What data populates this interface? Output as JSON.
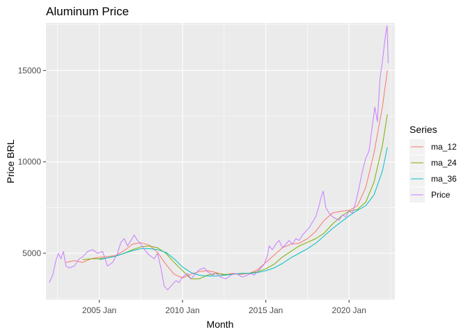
{
  "chart_data": {
    "type": "line",
    "title": "Aluminum Price",
    "xlabel": "Month",
    "ylabel": "Price BRL",
    "x_range": [
      2001.8,
      2022.75
    ],
    "ylim": [
      2450,
      17600
    ],
    "x_ticks": [
      {
        "value": 2005.0,
        "label": "2005 Jan"
      },
      {
        "value": 2010.0,
        "label": "2010 Jan"
      },
      {
        "value": 2015.0,
        "label": "2015 Jan"
      },
      {
        "value": 2020.0,
        "label": "2020 Jan"
      }
    ],
    "y_ticks": [
      {
        "value": 5000,
        "label": "5000"
      },
      {
        "value": 10000,
        "label": "10000"
      },
      {
        "value": 15000,
        "label": "15000"
      }
    ],
    "grid": true,
    "background": "#ebebeb",
    "legend": {
      "title": "Series",
      "position": "right"
    },
    "series": [
      {
        "name": "ma_12",
        "color": "#f8766d",
        "points": [
          [
            2003.0,
            4500
          ],
          [
            2003.5,
            4600
          ],
          [
            2004.0,
            4500
          ],
          [
            2004.5,
            4700
          ],
          [
            2005.0,
            4780
          ],
          [
            2005.5,
            4820
          ],
          [
            2006.0,
            4880
          ],
          [
            2006.5,
            5150
          ],
          [
            2007.0,
            5500
          ],
          [
            2007.5,
            5580
          ],
          [
            2008.0,
            5450
          ],
          [
            2008.5,
            5050
          ],
          [
            2009.0,
            4400
          ],
          [
            2009.5,
            3850
          ],
          [
            2010.0,
            3650
          ],
          [
            2010.5,
            3850
          ],
          [
            2011.0,
            4000
          ],
          [
            2011.5,
            4050
          ],
          [
            2012.0,
            3950
          ],
          [
            2012.5,
            3800
          ],
          [
            2013.0,
            3900
          ],
          [
            2013.5,
            3850
          ],
          [
            2014.0,
            3900
          ],
          [
            2014.5,
            4100
          ],
          [
            2015.0,
            4500
          ],
          [
            2015.5,
            4900
          ],
          [
            2016.0,
            5300
          ],
          [
            2016.5,
            5500
          ],
          [
            2017.0,
            5550
          ],
          [
            2017.5,
            5800
          ],
          [
            2018.0,
            6200
          ],
          [
            2018.5,
            6800
          ],
          [
            2019.0,
            7200
          ],
          [
            2019.5,
            7300
          ],
          [
            2020.0,
            7350
          ],
          [
            2020.5,
            7600
          ],
          [
            2021.0,
            8600
          ],
          [
            2021.5,
            10500
          ],
          [
            2022.0,
            13000
          ],
          [
            2022.3,
            15000
          ]
        ]
      },
      {
        "name": "ma_24",
        "color": "#7cae00",
        "points": [
          [
            2004.0,
            4650
          ],
          [
            2004.5,
            4700
          ],
          [
            2005.0,
            4700
          ],
          [
            2005.5,
            4750
          ],
          [
            2006.0,
            4850
          ],
          [
            2006.5,
            5000
          ],
          [
            2007.0,
            5200
          ],
          [
            2007.5,
            5350
          ],
          [
            2008.0,
            5400
          ],
          [
            2008.5,
            5300
          ],
          [
            2009.0,
            5000
          ],
          [
            2009.5,
            4500
          ],
          [
            2010.0,
            4050
          ],
          [
            2010.5,
            3600
          ],
          [
            2011.0,
            3600
          ],
          [
            2011.5,
            3800
          ],
          [
            2012.0,
            3900
          ],
          [
            2012.5,
            3850
          ],
          [
            2013.0,
            3850
          ],
          [
            2013.5,
            3900
          ],
          [
            2014.0,
            3900
          ],
          [
            2014.5,
            4000
          ],
          [
            2015.0,
            4150
          ],
          [
            2015.5,
            4400
          ],
          [
            2016.0,
            4800
          ],
          [
            2016.5,
            5100
          ],
          [
            2017.0,
            5400
          ],
          [
            2017.5,
            5600
          ],
          [
            2018.0,
            5800
          ],
          [
            2018.5,
            6100
          ],
          [
            2019.0,
            6600
          ],
          [
            2019.5,
            7000
          ],
          [
            2020.0,
            7300
          ],
          [
            2020.5,
            7400
          ],
          [
            2021.0,
            7800
          ],
          [
            2021.5,
            8900
          ],
          [
            2022.0,
            10900
          ],
          [
            2022.3,
            12600
          ]
        ]
      },
      {
        "name": "ma_36",
        "color": "#00bfc4",
        "points": [
          [
            2005.0,
            4650
          ],
          [
            2005.5,
            4750
          ],
          [
            2006.0,
            4850
          ],
          [
            2006.5,
            5000
          ],
          [
            2007.0,
            5150
          ],
          [
            2007.5,
            5250
          ],
          [
            2008.0,
            5250
          ],
          [
            2008.5,
            5200
          ],
          [
            2009.0,
            5050
          ],
          [
            2009.5,
            4700
          ],
          [
            2010.0,
            4250
          ],
          [
            2010.5,
            3950
          ],
          [
            2011.0,
            3800
          ],
          [
            2011.5,
            3750
          ],
          [
            2012.0,
            3750
          ],
          [
            2012.5,
            3800
          ],
          [
            2013.0,
            3850
          ],
          [
            2013.5,
            3900
          ],
          [
            2014.0,
            3900
          ],
          [
            2014.5,
            3950
          ],
          [
            2015.0,
            4050
          ],
          [
            2015.5,
            4200
          ],
          [
            2016.0,
            4450
          ],
          [
            2016.5,
            4750
          ],
          [
            2017.0,
            5000
          ],
          [
            2017.5,
            5250
          ],
          [
            2018.0,
            5550
          ],
          [
            2018.5,
            5950
          ],
          [
            2019.0,
            6350
          ],
          [
            2019.5,
            6700
          ],
          [
            2020.0,
            7050
          ],
          [
            2020.5,
            7350
          ],
          [
            2021.0,
            7600
          ],
          [
            2021.5,
            8200
          ],
          [
            2022.0,
            9500
          ],
          [
            2022.3,
            10800
          ]
        ]
      },
      {
        "name": "Price",
        "color": "#c77cff",
        "points": [
          [
            2002.0,
            3400
          ],
          [
            2002.2,
            3800
          ],
          [
            2002.4,
            4600
          ],
          [
            2002.55,
            5000
          ],
          [
            2002.7,
            4700
          ],
          [
            2002.85,
            5100
          ],
          [
            2003.0,
            4300
          ],
          [
            2003.2,
            4200
          ],
          [
            2003.5,
            4300
          ],
          [
            2003.8,
            4700
          ],
          [
            2004.0,
            4800
          ],
          [
            2004.3,
            5100
          ],
          [
            2004.6,
            5200
          ],
          [
            2004.9,
            5000
          ],
          [
            2005.2,
            5100
          ],
          [
            2005.5,
            4300
          ],
          [
            2005.8,
            4500
          ],
          [
            2006.1,
            5000
          ],
          [
            2006.3,
            5600
          ],
          [
            2006.5,
            5800
          ],
          [
            2006.7,
            5400
          ],
          [
            2006.9,
            5700
          ],
          [
            2007.1,
            6000
          ],
          [
            2007.3,
            5700
          ],
          [
            2007.5,
            5500
          ],
          [
            2007.8,
            5100
          ],
          [
            2008.0,
            4900
          ],
          [
            2008.3,
            4700
          ],
          [
            2008.5,
            5000
          ],
          [
            2008.7,
            4200
          ],
          [
            2008.9,
            3200
          ],
          [
            2009.1,
            3000
          ],
          [
            2009.3,
            3200
          ],
          [
            2009.6,
            3500
          ],
          [
            2009.8,
            3400
          ],
          [
            2010.0,
            3700
          ],
          [
            2010.3,
            3900
          ],
          [
            2010.5,
            3600
          ],
          [
            2010.8,
            3900
          ],
          [
            2011.0,
            4100
          ],
          [
            2011.3,
            4200
          ],
          [
            2011.5,
            4000
          ],
          [
            2011.8,
            3800
          ],
          [
            2012.0,
            3900
          ],
          [
            2012.3,
            3700
          ],
          [
            2012.6,
            3600
          ],
          [
            2012.9,
            3800
          ],
          [
            2013.2,
            3900
          ],
          [
            2013.4,
            3800
          ],
          [
            2013.6,
            3700
          ],
          [
            2013.9,
            3800
          ],
          [
            2014.1,
            3900
          ],
          [
            2014.3,
            3800
          ],
          [
            2014.5,
            4000
          ],
          [
            2014.7,
            4200
          ],
          [
            2014.9,
            4400
          ],
          [
            2015.1,
            4900
          ],
          [
            2015.2,
            5400
          ],
          [
            2015.4,
            5200
          ],
          [
            2015.6,
            5500
          ],
          [
            2015.8,
            5700
          ],
          [
            2016.0,
            5300
          ],
          [
            2016.2,
            5500
          ],
          [
            2016.4,
            5700
          ],
          [
            2016.6,
            5500
          ],
          [
            2016.8,
            5800
          ],
          [
            2017.0,
            5700
          ],
          [
            2017.2,
            6000
          ],
          [
            2017.4,
            6200
          ],
          [
            2017.6,
            6400
          ],
          [
            2017.8,
            6700
          ],
          [
            2018.0,
            7000
          ],
          [
            2018.2,
            7600
          ],
          [
            2018.3,
            8000
          ],
          [
            2018.45,
            8400
          ],
          [
            2018.6,
            7500
          ],
          [
            2018.8,
            7200
          ],
          [
            2019.0,
            7000
          ],
          [
            2019.2,
            6900
          ],
          [
            2019.4,
            6800
          ],
          [
            2019.6,
            7100
          ],
          [
            2019.8,
            7000
          ],
          [
            2020.0,
            7300
          ],
          [
            2020.2,
            7200
          ],
          [
            2020.4,
            7800
          ],
          [
            2020.6,
            8600
          ],
          [
            2020.8,
            9500
          ],
          [
            2021.0,
            10200
          ],
          [
            2021.2,
            10600
          ],
          [
            2021.4,
            12000
          ],
          [
            2021.55,
            13000
          ],
          [
            2021.7,
            12200
          ],
          [
            2021.85,
            14500
          ],
          [
            2022.0,
            15500
          ],
          [
            2022.1,
            16300
          ],
          [
            2022.2,
            17000
          ],
          [
            2022.28,
            17450
          ],
          [
            2022.35,
            15400
          ]
        ]
      }
    ]
  }
}
